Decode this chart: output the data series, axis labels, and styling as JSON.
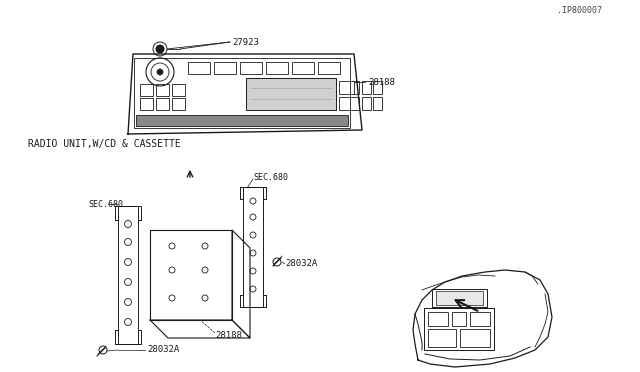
{
  "bg_color": "#ffffff",
  "line_color": "#1a1a1a",
  "gray1": "#999999",
  "gray2": "#cccccc",
  "gray3": "#666666",
  "figure_width": 6.4,
  "figure_height": 3.72,
  "dpi": 100,
  "diagram_title": "RADIO UNIT,W/CD & CASSETTE",
  "part_label_28032A_1": "28032A",
  "part_label_28188_top": "28188",
  "part_label_sec680_L": "SEC.680",
  "part_label_28032A_2": "28032A",
  "part_label_sec680_R": "SEC.680",
  "part_label_28188_bot": "28188",
  "part_label_27923": "27923",
  "part_label_id": ".IP800007"
}
